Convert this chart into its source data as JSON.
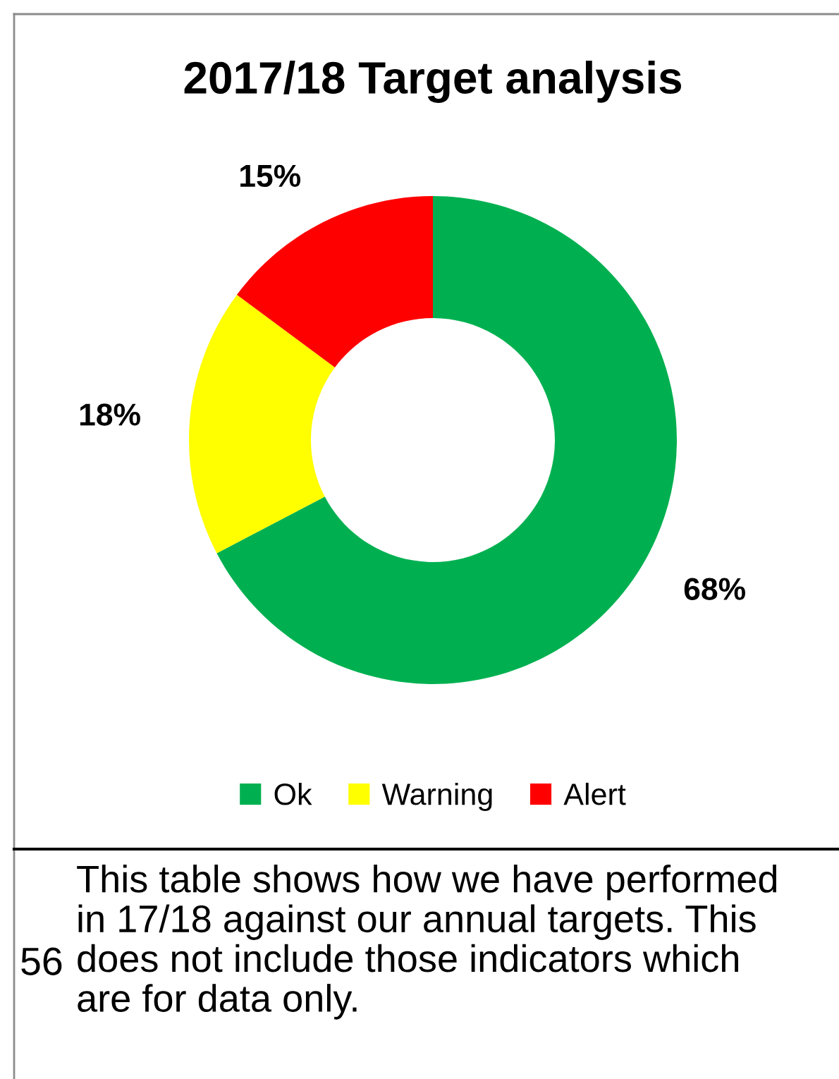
{
  "chart_data": {
    "type": "donut",
    "title": "2017/18 Target analysis",
    "categories": [
      "Ok",
      "Warning",
      "Alert"
    ],
    "values": [
      68,
      18,
      15
    ],
    "colors": [
      "#00b050",
      "#ffff00",
      "#ff0000"
    ],
    "value_labels": [
      "68%",
      "18%",
      "15%"
    ],
    "legend": "bottom",
    "annotations": [
      "This table shows how we have performed\nin 17/18 against our annual targets. This\ndoes not include those indicators which\nare for data only.",
      "56"
    ]
  }
}
